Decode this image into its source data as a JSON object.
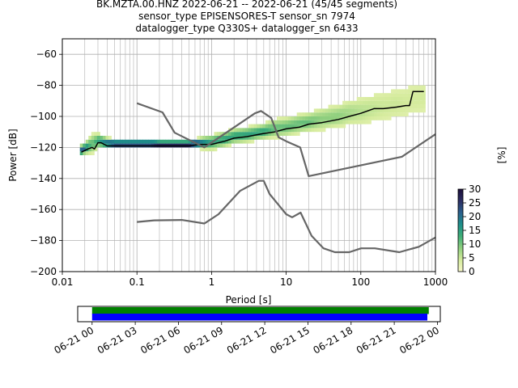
{
  "title_lines": [
    "BK.MZTA.00.HNZ   2022-06-21 -- 2022-06-21  (45/45 segments)",
    "sensor_type EPISENSORES-T sensor_sn 7974",
    "datalogger_type Q330S+ datalogger_sn 6433"
  ],
  "chart_data": {
    "type": "line",
    "xlabel": "Period [s]",
    "ylabel": "Power [dB]",
    "xscale": "log",
    "xlim": [
      0.01,
      1000
    ],
    "ylim": [
      -200,
      -50
    ],
    "grid": true,
    "x_tick_labels": [
      "0.01",
      "0.1",
      "1",
      "10",
      "100",
      "1000"
    ],
    "x_tick_values": [
      0.01,
      0.1,
      1,
      10,
      100,
      1000
    ],
    "y_tick_values": [
      -200,
      -180,
      -160,
      -140,
      -120,
      -100,
      -80,
      -60
    ],
    "y_tick_labels": [
      "−200",
      "−180",
      "−160",
      "−140",
      "−120",
      "−100",
      "−80",
      "−60"
    ],
    "colorbar": {
      "label": "[%]",
      "range": [
        0,
        30
      ],
      "tick_labels": [
        "0",
        "5",
        "10",
        "15",
        "20",
        "25",
        "30"
      ],
      "tick_values": [
        0,
        5,
        10,
        15,
        20,
        25,
        30
      ],
      "colors": [
        "#f7f7c9",
        "#d4eb9c",
        "#8fcf7e",
        "#3fae77",
        "#1e8f8a",
        "#2a5f8c",
        "#2b2e63",
        "#1b0e3a"
      ]
    },
    "series": [
      {
        "role": "mode",
        "color": "#000000",
        "x": [
          0.018,
          0.02,
          0.022,
          0.025,
          0.027,
          0.03,
          0.033,
          0.04,
          0.05,
          0.07,
          0.1,
          0.2,
          0.3,
          0.5,
          0.7,
          1,
          1.5,
          2,
          3,
          5,
          7,
          10,
          15,
          20,
          30,
          50,
          70,
          100,
          150,
          200,
          300,
          400,
          450,
          500,
          550,
          700
        ],
        "y": [
          -123,
          -122,
          -121,
          -120,
          -121,
          -117,
          -117,
          -119,
          -119,
          -119,
          -119,
          -119,
          -119,
          -119,
          -118,
          -118,
          -116,
          -114,
          -113,
          -111,
          -110,
          -108,
          -107,
          -105,
          -104,
          -102,
          -100,
          -98,
          -95,
          -95,
          -94,
          -93,
          -93,
          -84,
          -84,
          -84
        ]
      },
      {
        "role": "model-high-1",
        "color": "#666666",
        "x": [
          0.1,
          0.22,
          0.32,
          0.8,
          3.8,
          4.6,
          6.3,
          7.9,
          10,
          15.4,
          20,
          354.8,
          1000
        ],
        "y": [
          -91.5,
          -97.4,
          -110.5,
          -120,
          -98,
          -96.5,
          -101,
          -113.5,
          -116,
          -120,
          -138.5,
          -126,
          -111.5
        ]
      },
      {
        "role": "model-low",
        "color": "#666666",
        "x": [
          0.1,
          0.17,
          0.4,
          0.8,
          1.24,
          2.4,
          4.3,
          5,
          6,
          10,
          12,
          15.6,
          21.9,
          31.6,
          45,
          70,
          101,
          154,
          328,
          600,
          1000
        ],
        "y": [
          -168,
          -167,
          -166.7,
          -169,
          -163,
          -148,
          -141.5,
          -141.5,
          -150,
          -163,
          -165,
          -162,
          -177,
          -185,
          -187.5,
          -187.5,
          -185,
          -185,
          -187.5,
          -184,
          -178
        ]
      }
    ],
    "density": {
      "description": "probability density of segments around the mode",
      "x": [
        0.018,
        0.02,
        0.025,
        0.03,
        0.04,
        0.05,
        0.07,
        0.1,
        0.15,
        0.2,
        0.3,
        0.5,
        0.7,
        1,
        1.5,
        2,
        3,
        5,
        7,
        10,
        15,
        20,
        30,
        50,
        70,
        100,
        150,
        200,
        300,
        400,
        500,
        700
      ],
      "center": [
        -123,
        -122,
        -119,
        -117,
        -118.5,
        -119,
        -119,
        -119,
        -119,
        -119,
        -119,
        -119,
        -118.5,
        -118,
        -116,
        -114,
        -113,
        -111,
        -109,
        -108,
        -106,
        -105,
        -103,
        -101,
        -99,
        -98,
        -96,
        -95,
        -93,
        -92,
        -90,
        -89
      ],
      "spread": [
        2,
        2,
        4,
        3,
        2,
        1.5,
        1.5,
        1.5,
        1.5,
        1,
        1,
        1,
        2,
        3,
        3,
        3,
        3,
        3,
        4,
        4,
        4,
        4,
        5,
        5,
        6,
        7,
        8,
        9,
        9,
        10,
        10,
        10
      ]
    },
    "timeline": {
      "tick_labels": [
        "06-21 00",
        "06-21 03",
        "06-21 06",
        "06-21 09",
        "06-21 12",
        "06-21 15",
        "06-21 18",
        "06-21 21",
        "06-22 00"
      ],
      "tick_hours": [
        0,
        3,
        6,
        9,
        12,
        15,
        18,
        21,
        24
      ],
      "range_hours": [
        -1,
        24.2
      ],
      "bars": [
        {
          "color": "#008000",
          "start_hours": 0,
          "end_hours": 23.4
        },
        {
          "color": "#0000ff",
          "start_hours": 0,
          "end_hours": 23.3
        }
      ]
    }
  }
}
